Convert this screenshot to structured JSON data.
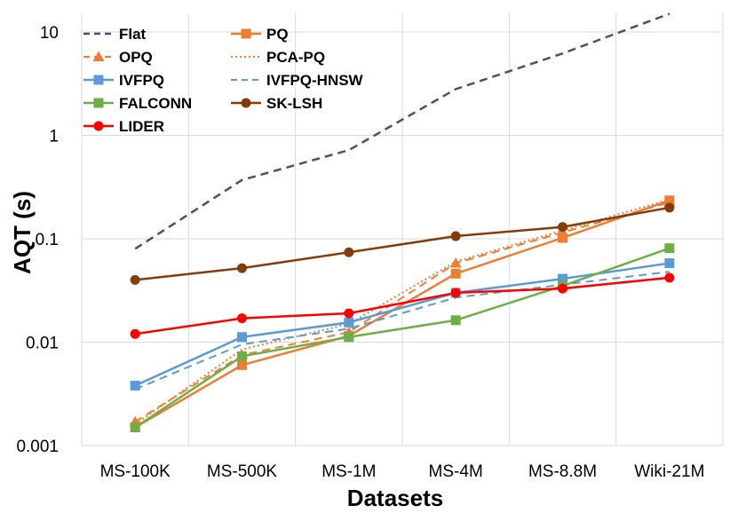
{
  "chart_data": {
    "type": "line",
    "xlabel": "Datasets",
    "ylabel": "AQT (s)",
    "yscale": "log",
    "ylim": [
      0.001,
      15
    ],
    "yticks": [
      {
        "value": 0.001,
        "label": "0.001"
      },
      {
        "value": 0.01,
        "label": "0.01"
      },
      {
        "value": 0.1,
        "label": "0.1"
      },
      {
        "value": 1,
        "label": "1"
      },
      {
        "value": 10,
        "label": "10"
      }
    ],
    "categories": [
      "MS-100K",
      "MS-500K",
      "MS-1M",
      "MS-4M",
      "MS-8.8M",
      "Wiki-21M"
    ],
    "grid": true,
    "legend_position": "top-left",
    "series": [
      {
        "name": "Flat",
        "color": "#44546A",
        "dash": "dashed",
        "marker": "none",
        "width": 2.5,
        "values": [
          0.08,
          0.37,
          0.72,
          2.8,
          6.2,
          15.0
        ]
      },
      {
        "name": "PQ",
        "color": "#ED7D31",
        "dash": "solid",
        "marker": "square",
        "width": 2.5,
        "values": [
          0.0015,
          0.006,
          0.0115,
          0.046,
          0.102,
          0.235
        ]
      },
      {
        "name": "OPQ",
        "color": "#ED7D31",
        "dash": "dashed",
        "marker": "triangle",
        "width": 2,
        "values": [
          0.0017,
          0.0075,
          0.0125,
          0.058,
          0.115,
          0.225
        ]
      },
      {
        "name": "PCA-PQ",
        "color": "#ED7D31",
        "dash": "dotted",
        "marker": "none",
        "width": 2,
        "values": [
          0.0016,
          0.0085,
          0.015,
          0.06,
          0.12,
          0.24
        ]
      },
      {
        "name": "IVFPQ",
        "color": "#5B9BD5",
        "dash": "solid",
        "marker": "square",
        "width": 2.5,
        "values": [
          0.0038,
          0.0112,
          0.0155,
          0.03,
          0.041,
          0.058
        ]
      },
      {
        "name": "IVFPQ-HNSW",
        "color": "#5B9BD5",
        "dash": "dashed",
        "marker": "none",
        "width": 2,
        "values": [
          0.0035,
          0.0095,
          0.0135,
          0.027,
          0.036,
          0.048
        ]
      },
      {
        "name": "FALCONN",
        "color": "#70AD47",
        "dash": "solid",
        "marker": "square",
        "width": 2.5,
        "values": [
          0.0015,
          0.0073,
          0.0112,
          0.0163,
          0.035,
          0.081
        ]
      },
      {
        "name": "SK-LSH",
        "color": "#843C0C",
        "dash": "solid",
        "marker": "circle",
        "width": 2.5,
        "values": [
          0.04,
          0.052,
          0.074,
          0.106,
          0.13,
          0.2
        ]
      },
      {
        "name": "LIDER",
        "color": "#FF0000",
        "dash": "solid",
        "marker": "circle",
        "width": 2.5,
        "values": [
          0.012,
          0.017,
          0.019,
          0.03,
          0.033,
          0.042
        ]
      }
    ]
  }
}
